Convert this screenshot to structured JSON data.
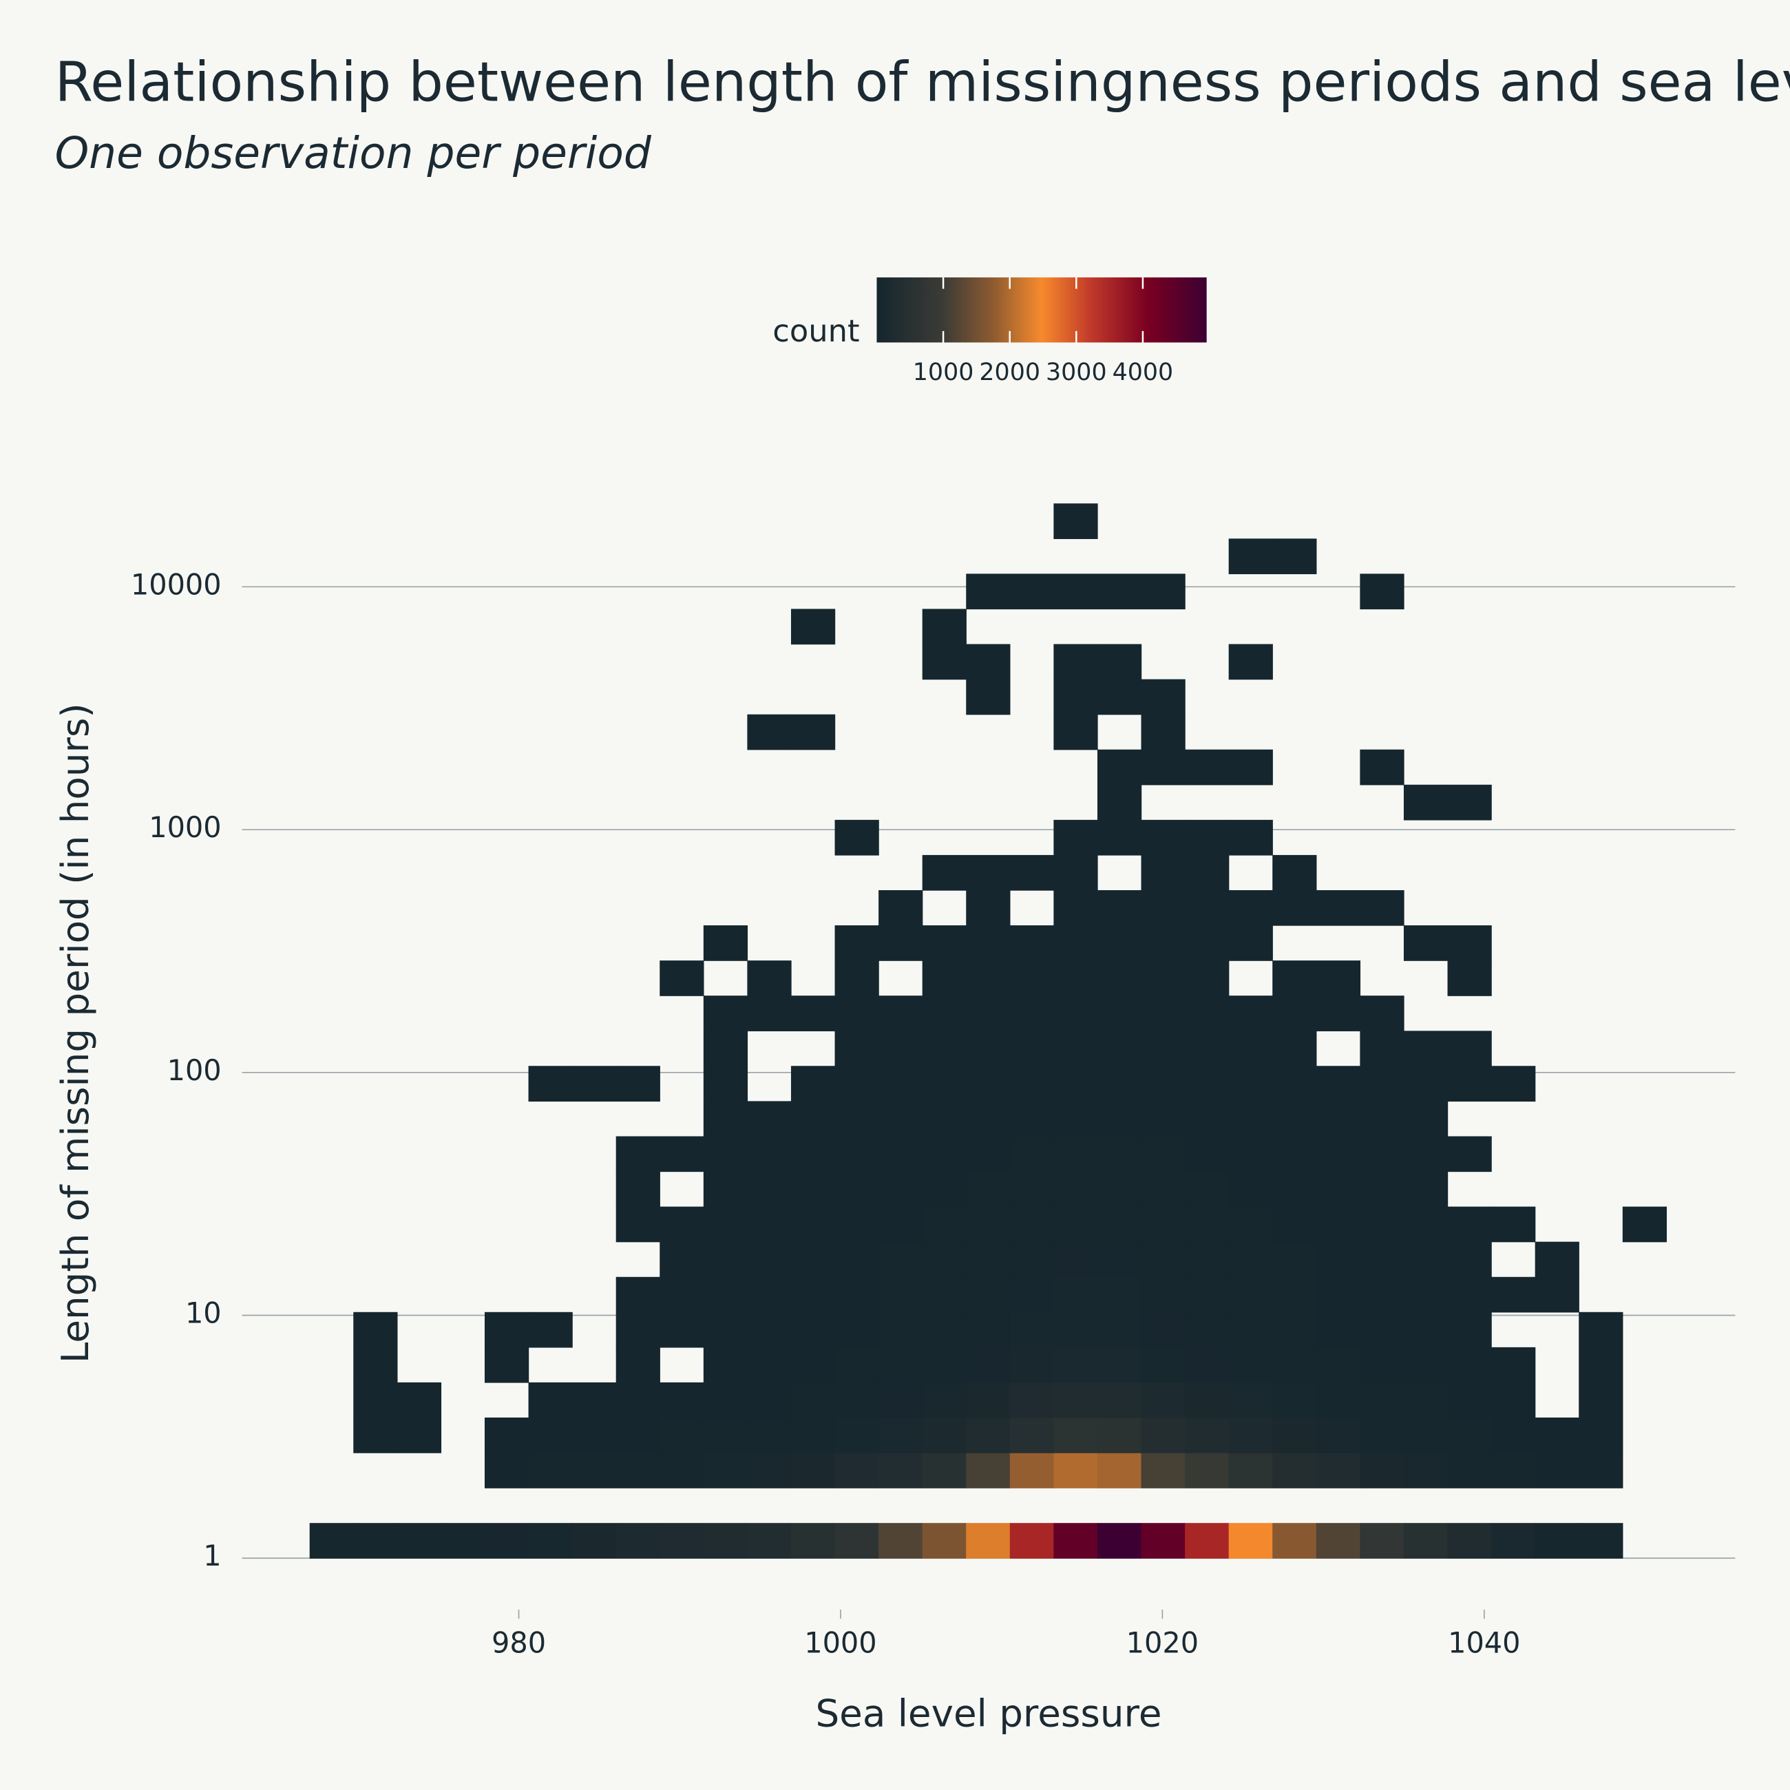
{
  "chart_data": {
    "type": "heatmap",
    "title": "Relationship between length of missingness periods and sea level pressure",
    "subtitle": "One observation per period",
    "x_label": "Sea level pressure",
    "y_label": "Length of missing period (in hours)",
    "colorbar_title": "count",
    "x_bins": [
      967,
      969.72,
      972.44,
      975.16,
      977.88,
      980.6,
      983.32,
      986.04,
      988.76,
      991.48,
      994.2,
      996.92,
      999.64,
      1002.36,
      1005.08,
      1007.8,
      1010.52,
      1013.24,
      1015.96,
      1018.68,
      1021.4,
      1024.12,
      1026.84,
      1029.56,
      1032.28,
      1035,
      1037.72,
      1040.44,
      1043.16,
      1045.88,
      1048.6,
      1051.32
    ],
    "y_bins": [
      1,
      1.3955,
      1.9475,
      2.718,
      3.7933,
      5.2937,
      7.388,
      10.313,
      14.39,
      20.09,
      28.03,
      39.13,
      54.6,
      76.2,
      106.4,
      148.4,
      207.2,
      289.1,
      403.5,
      563.2,
      786,
      1097,
      1531,
      2137,
      2982,
      4162,
      5808,
      8107,
      11315,
      15790,
      22036
    ],
    "z": [
      [
        40,
        45,
        50,
        60,
        70,
        90,
        150,
        200,
        250,
        300,
        350,
        500,
        650,
        1200,
        1600,
        2300,
        3500,
        4400,
        4950,
        4400,
        3500,
        2450,
        1700,
        1200,
        750,
        500,
        280,
        120,
        60,
        40,
        null
      ],
      [
        null,
        null,
        null,
        null,
        null,
        null,
        null,
        null,
        null,
        null,
        null,
        null,
        null,
        null,
        null,
        null,
        null,
        null,
        null,
        null,
        null,
        null,
        null,
        null,
        null,
        null,
        null,
        null,
        null,
        null,
        null
      ],
      [
        null,
        null,
        null,
        null,
        20,
        30,
        40,
        50,
        60,
        80,
        100,
        150,
        250,
        350,
        500,
        1100,
        1800,
        2000,
        1900,
        1100,
        900,
        600,
        400,
        300,
        150,
        100,
        60,
        40,
        20,
        15,
        null
      ],
      [
        null,
        2,
        1,
        null,
        8,
        12,
        15,
        20,
        25,
        30,
        40,
        60,
        90,
        130,
        180,
        300,
        450,
        600,
        550,
        400,
        300,
        220,
        160,
        100,
        60,
        40,
        25,
        15,
        8,
        5,
        null
      ],
      [
        null,
        1,
        1,
        null,
        null,
        5,
        8,
        10,
        12,
        15,
        20,
        30,
        50,
        70,
        100,
        150,
        250,
        300,
        280,
        200,
        160,
        120,
        90,
        60,
        40,
        25,
        15,
        8,
        null,
        3,
        null
      ],
      [
        null,
        1,
        null,
        null,
        2,
        null,
        null,
        3,
        null,
        8,
        10,
        15,
        25,
        35,
        50,
        70,
        100,
        130,
        120,
        90,
        70,
        55,
        40,
        30,
        20,
        12,
        8,
        4,
        null,
        2,
        null
      ],
      [
        null,
        1,
        null,
        null,
        1,
        2,
        null,
        3,
        5,
        7,
        10,
        15,
        20,
        30,
        40,
        55,
        75,
        90,
        85,
        70,
        55,
        40,
        30,
        20,
        15,
        10,
        5,
        null,
        null,
        1,
        null
      ],
      [
        null,
        null,
        null,
        null,
        null,
        null,
        null,
        3,
        5,
        7,
        10,
        14,
        20,
        28,
        38,
        50,
        65,
        80,
        75,
        60,
        50,
        38,
        28,
        20,
        14,
        9,
        5,
        3,
        2,
        null,
        null
      ],
      [
        null,
        null,
        null,
        null,
        null,
        null,
        null,
        null,
        4,
        6,
        9,
        13,
        18,
        25,
        33,
        45,
        58,
        70,
        65,
        55,
        45,
        34,
        25,
        18,
        12,
        7,
        4,
        null,
        2,
        null,
        null
      ],
      [
        null,
        null,
        null,
        null,
        null,
        null,
        null,
        2,
        3,
        5,
        7,
        10,
        15,
        20,
        28,
        38,
        50,
        60,
        56,
        48,
        38,
        28,
        20,
        14,
        9,
        6,
        3,
        2,
        null,
        null,
        1
      ],
      [
        null,
        null,
        null,
        null,
        null,
        null,
        null,
        1,
        null,
        4,
        5,
        8,
        11,
        15,
        20,
        28,
        36,
        42,
        40,
        34,
        28,
        20,
        15,
        10,
        6,
        3,
        null,
        null,
        null,
        null,
        null
      ],
      [
        null,
        null,
        null,
        null,
        null,
        null,
        null,
        1,
        2,
        3,
        4,
        6,
        8,
        11,
        15,
        20,
        26,
        30,
        28,
        24,
        20,
        15,
        11,
        7,
        4,
        3,
        1,
        null,
        null,
        null,
        null
      ],
      [
        null,
        null,
        null,
        null,
        null,
        null,
        null,
        null,
        null,
        2,
        3,
        4,
        6,
        8,
        11,
        14,
        18,
        22,
        20,
        17,
        14,
        10,
        7,
        5,
        3,
        2,
        null,
        null,
        null,
        null,
        null
      ],
      [
        null,
        null,
        null,
        null,
        null,
        1,
        1,
        1,
        null,
        1,
        null,
        3,
        4,
        6,
        8,
        10,
        13,
        15,
        14,
        12,
        10,
        7,
        5,
        3,
        2,
        2,
        1,
        1,
        null,
        null,
        null
      ],
      [
        null,
        null,
        null,
        null,
        null,
        null,
        null,
        null,
        null,
        1,
        null,
        null,
        3,
        4,
        5,
        7,
        9,
        10,
        9,
        8,
        6,
        4,
        3,
        null,
        2,
        1,
        1,
        null,
        null,
        null,
        null
      ],
      [
        null,
        null,
        null,
        null,
        null,
        null,
        null,
        null,
        null,
        1,
        1,
        1,
        2,
        3,
        4,
        5,
        6,
        7,
        6,
        5,
        4,
        3,
        2,
        1,
        1,
        null,
        null,
        null,
        null,
        null,
        null
      ],
      [
        null,
        null,
        null,
        null,
        null,
        null,
        null,
        null,
        1,
        null,
        1,
        null,
        1,
        null,
        2,
        3,
        4,
        5,
        4,
        3,
        2,
        null,
        1,
        1,
        null,
        null,
        1,
        null,
        null,
        null,
        null
      ],
      [
        null,
        null,
        null,
        null,
        null,
        null,
        null,
        null,
        null,
        1,
        null,
        null,
        1,
        1,
        2,
        2,
        3,
        3,
        3,
        2,
        2,
        1,
        null,
        null,
        null,
        1,
        1,
        null,
        null,
        null,
        null
      ],
      [
        null,
        null,
        null,
        null,
        null,
        null,
        null,
        null,
        null,
        null,
        null,
        null,
        null,
        1,
        null,
        1,
        null,
        2,
        2,
        2,
        1,
        1,
        1,
        1,
        1,
        null,
        null,
        null,
        null,
        null,
        null
      ],
      [
        null,
        null,
        null,
        null,
        null,
        null,
        null,
        null,
        null,
        null,
        null,
        null,
        null,
        null,
        1,
        1,
        1,
        1,
        null,
        1,
        1,
        null,
        1,
        null,
        null,
        null,
        null,
        null,
        null,
        null,
        null
      ],
      [
        null,
        null,
        null,
        null,
        null,
        null,
        null,
        null,
        null,
        null,
        null,
        null,
        1,
        null,
        null,
        null,
        null,
        1,
        1,
        1,
        1,
        1,
        null,
        null,
        null,
        null,
        null,
        null,
        null,
        null,
        null
      ],
      [
        null,
        null,
        null,
        null,
        null,
        null,
        null,
        null,
        null,
        null,
        null,
        null,
        null,
        null,
        null,
        null,
        null,
        null,
        1,
        null,
        null,
        null,
        null,
        null,
        null,
        1,
        1,
        null,
        null,
        null,
        null
      ],
      [
        null,
        null,
        null,
        null,
        null,
        null,
        null,
        null,
        null,
        null,
        null,
        null,
        null,
        null,
        null,
        null,
        null,
        null,
        1,
        1,
        1,
        1,
        null,
        null,
        1,
        null,
        null,
        null,
        null,
        null,
        null
      ],
      [
        null,
        null,
        null,
        null,
        null,
        null,
        null,
        null,
        null,
        null,
        1,
        1,
        null,
        null,
        null,
        null,
        null,
        1,
        null,
        1,
        null,
        null,
        null,
        null,
        null,
        null,
        null,
        null,
        null,
        null,
        null
      ],
      [
        null,
        null,
        null,
        null,
        null,
        null,
        null,
        null,
        null,
        null,
        null,
        null,
        null,
        null,
        null,
        1,
        null,
        1,
        1,
        1,
        null,
        null,
        null,
        null,
        null,
        null,
        null,
        null,
        null,
        null,
        null
      ],
      [
        null,
        null,
        null,
        null,
        null,
        null,
        null,
        null,
        null,
        null,
        null,
        null,
        null,
        null,
        1,
        1,
        null,
        1,
        1,
        null,
        null,
        1,
        null,
        null,
        null,
        null,
        null,
        null,
        null,
        null,
        null
      ],
      [
        null,
        null,
        null,
        null,
        null,
        null,
        null,
        null,
        null,
        null,
        null,
        1,
        null,
        null,
        1,
        null,
        null,
        null,
        null,
        null,
        null,
        null,
        null,
        null,
        null,
        null,
        null,
        null,
        null,
        null,
        null
      ],
      [
        null,
        null,
        null,
        null,
        null,
        null,
        null,
        null,
        null,
        null,
        null,
        null,
        null,
        null,
        null,
        1,
        1,
        1,
        1,
        1,
        null,
        null,
        null,
        null,
        1,
        null,
        null,
        null,
        null,
        null,
        null
      ],
      [
        null,
        null,
        null,
        null,
        null,
        null,
        null,
        null,
        null,
        null,
        null,
        null,
        null,
        null,
        null,
        null,
        null,
        null,
        null,
        null,
        null,
        1,
        1,
        null,
        null,
        null,
        null,
        null,
        null,
        null,
        null
      ],
      [
        null,
        null,
        null,
        null,
        null,
        null,
        null,
        null,
        null,
        null,
        null,
        null,
        null,
        null,
        null,
        null,
        null,
        1,
        null,
        null,
        null,
        null,
        null,
        null,
        null,
        null,
        null,
        null,
        null,
        null,
        null
      ]
    ],
    "xlim": [
      962.8,
      1055.6
    ],
    "xticks": [
      980,
      1000,
      1020,
      1040
    ],
    "ylim": [
      0.684,
      27660
    ],
    "yticks": [
      1,
      10,
      100,
      1000,
      10000
    ],
    "y_scale": "log",
    "grid": true,
    "zlim": [
      0,
      4960
    ],
    "colorbar_ticks": [
      1000,
      2000,
      3000,
      4000
    ],
    "colorscale": [
      [
        0,
        "#15262e"
      ],
      [
        0.2,
        "#3b3b36"
      ],
      [
        0.35,
        "#8c5a31"
      ],
      [
        0.5,
        "#f78a2c"
      ],
      [
        0.65,
        "#c0392a"
      ],
      [
        0.82,
        "#7a0021"
      ],
      [
        1,
        "#3c0032"
      ]
    ]
  }
}
